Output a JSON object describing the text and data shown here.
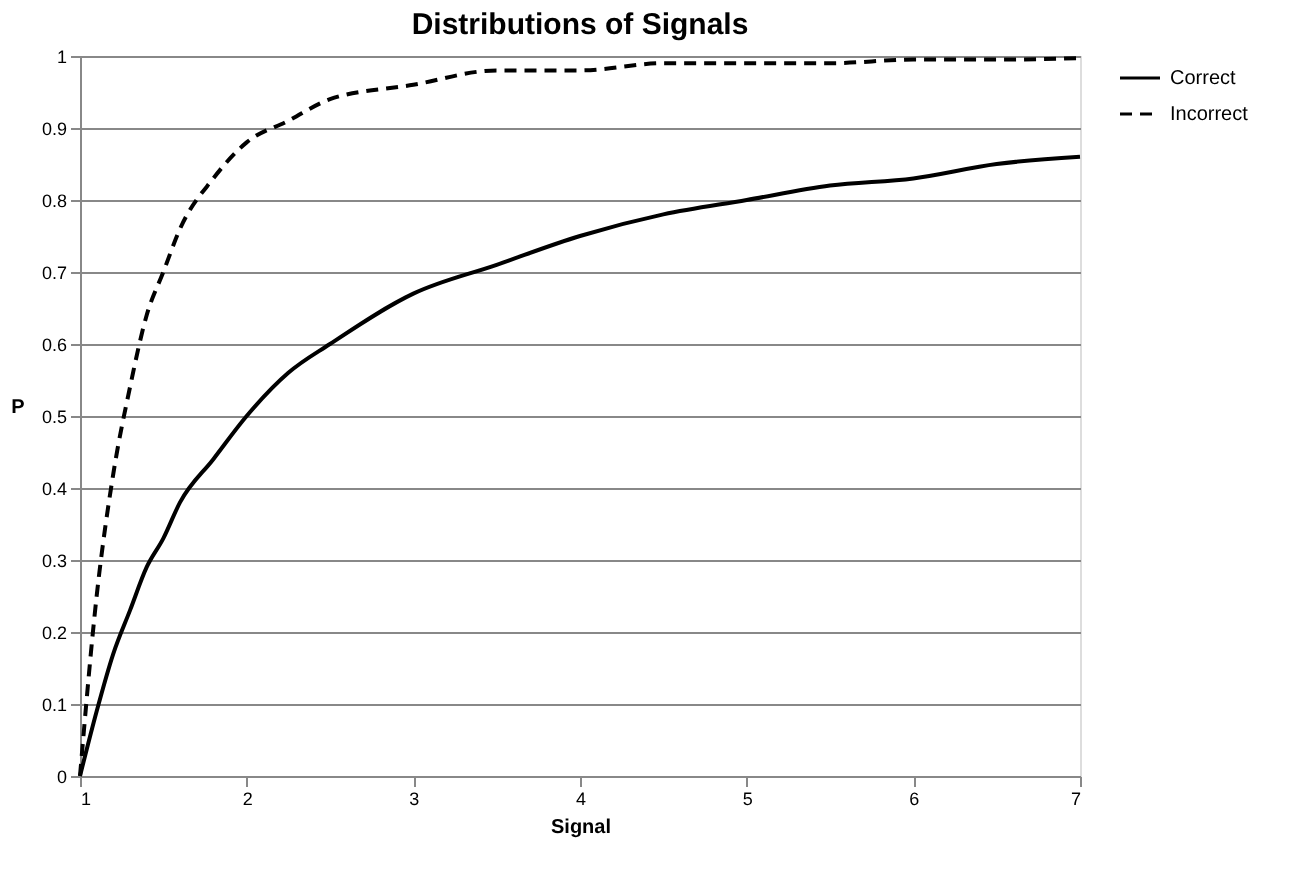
{
  "chart_data": {
    "type": "line",
    "title": "Distributions of Signals",
    "xlabel": "Signal",
    "ylabel": "P",
    "xlim": [
      1,
      7
    ],
    "xticks": [
      1,
      2,
      3,
      4,
      5,
      6,
      7
    ],
    "ylim": [
      0,
      1
    ],
    "yticks": [
      0,
      0.1,
      0.2,
      0.3,
      0.4,
      0.5,
      0.6,
      0.7,
      0.8,
      0.9,
      1
    ],
    "grid": "y",
    "legend": "right",
    "marker": "none",
    "x": [
      1,
      1.1,
      1.2,
      1.3,
      1.4,
      1.5,
      1.6,
      1.8,
      2,
      2.25,
      2.5,
      3,
      3.5,
      4,
      4.5,
      5,
      5.5,
      6,
      6.5,
      7
    ],
    "series": [
      {
        "name": "Correct",
        "color": "#000000",
        "line_style": "solid",
        "values": [
          0,
          0.09,
          0.17,
          0.23,
          0.29,
          0.33,
          0.38,
          0.44,
          0.5,
          0.56,
          0.6,
          0.67,
          0.71,
          0.75,
          0.78,
          0.8,
          0.82,
          0.83,
          0.85,
          0.86
        ]
      },
      {
        "name": "Incorrect",
        "color": "#000000",
        "line_style": "dashed",
        "values": [
          0,
          0.25,
          0.42,
          0.54,
          0.64,
          0.7,
          0.76,
          0.83,
          0.88,
          0.91,
          0.94,
          0.96,
          0.98,
          0.98,
          0.99,
          0.99,
          0.99,
          0.995,
          0.995,
          0.997
        ]
      }
    ]
  }
}
